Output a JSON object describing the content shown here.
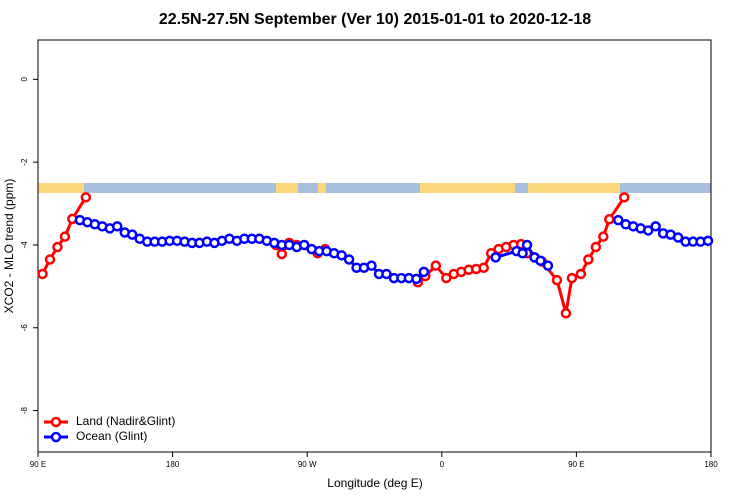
{
  "chart_data": {
    "type": "line",
    "title": "22.5N-27.5N September (Ver 10)   2015-01-01 to 2020-12-18",
    "x_label": "Longitude (deg E)",
    "y_label": "XCO2 - MLO trend (ppm)",
    "xlim": [
      90,
      540
    ],
    "xticks": [
      {
        "value": 90,
        "label": "90 E"
      },
      {
        "value": 180,
        "label": "180"
      },
      {
        "value": 270,
        "label": "90 W"
      },
      {
        "value": 360,
        "label": "0"
      },
      {
        "value": 450,
        "label": "90 E"
      },
      {
        "value": 540,
        "label": "180"
      }
    ],
    "ylim": [
      -9,
      0.95
    ],
    "yticks": [
      0,
      -2,
      -4,
      -6,
      -8
    ],
    "legend": "bottom-left",
    "series": [
      {
        "name": "Land (Nadir&Glint)",
        "color": "#ff0000",
        "x": [
          93,
          98,
          103,
          108,
          113,
          122,
          130,
          249,
          253,
          258,
          263,
          277,
          282,
          300,
          344,
          349,
          356,
          363,
          368,
          373,
          378,
          383,
          388,
          393,
          398,
          403,
          408,
          413,
          417,
          422,
          427,
          437,
          443,
          447,
          453,
          458,
          463,
          468,
          472,
          482
        ],
        "values": [
          -4.7,
          -4.35,
          -4.05,
          -3.8,
          -3.37,
          -2.85,
          null,
          -4.0,
          -4.22,
          -3.95,
          -4.0,
          -4.2,
          -4.1,
          null,
          -4.9,
          -4.75,
          -4.5,
          -4.8,
          -4.7,
          -4.65,
          -4.6,
          -4.58,
          -4.55,
          -4.2,
          -4.1,
          -4.05,
          -4.0,
          -3.98,
          -4.2,
          -4.3,
          -4.4,
          -4.85,
          -5.65,
          -4.8,
          -4.7,
          -4.35,
          -4.05,
          -3.8,
          -3.38,
          -2.85
        ]
      },
      {
        "name": "Ocean (Glint)",
        "color": "#0000ff",
        "x": [
          118,
          123,
          128,
          133,
          138,
          143,
          148,
          153,
          158,
          163,
          168,
          173,
          178,
          183,
          188,
          193,
          198,
          203,
          208,
          213,
          218,
          223,
          228,
          233,
          238,
          243,
          248,
          253,
          258,
          263,
          268,
          273,
          278,
          283,
          288,
          293,
          298,
          303,
          308,
          313,
          318,
          323,
          328,
          333,
          338,
          343,
          348,
          370,
          396,
          410,
          414,
          417,
          422,
          426,
          431,
          450,
          478,
          483,
          488,
          493,
          498,
          503,
          508,
          513,
          518,
          523,
          528,
          533,
          538
        ],
        "values": [
          -3.4,
          -3.45,
          -3.5,
          -3.55,
          -3.6,
          -3.55,
          -3.7,
          -3.75,
          -3.85,
          -3.92,
          -3.92,
          -3.92,
          -3.9,
          -3.9,
          -3.92,
          -3.95,
          -3.95,
          -3.92,
          -3.95,
          -3.9,
          -3.85,
          -3.9,
          -3.85,
          -3.85,
          -3.85,
          -3.9,
          -3.95,
          -4.0,
          -4.0,
          -4.05,
          -4.0,
          -4.1,
          -4.15,
          -4.15,
          -4.2,
          -4.25,
          -4.35,
          -4.55,
          -4.55,
          -4.5,
          -4.7,
          -4.7,
          -4.8,
          -4.8,
          -4.8,
          -4.82,
          -4.65,
          null,
          -4.3,
          -4.15,
          -4.2,
          -4.0,
          -4.3,
          -4.38,
          -4.5,
          null,
          -3.4,
          -3.5,
          -3.55,
          -3.6,
          -3.65,
          -3.55,
          -3.72,
          -3.75,
          -3.82,
          -3.92,
          -3.92,
          -3.92,
          -3.9
        ]
      }
    ]
  }
}
